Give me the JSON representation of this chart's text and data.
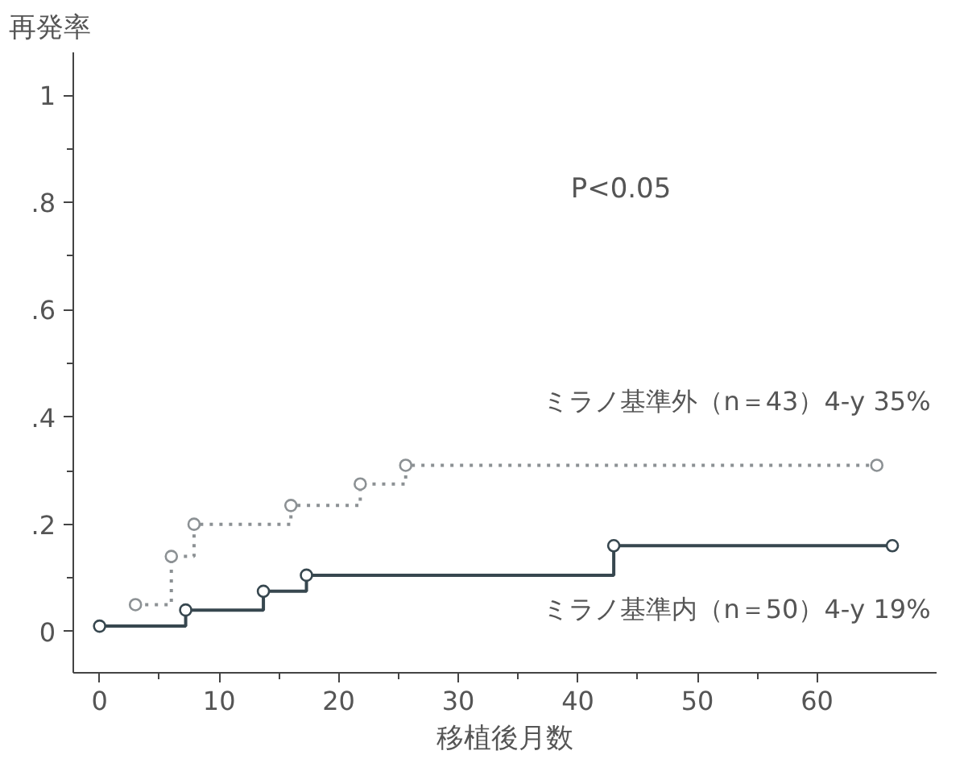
{
  "chart_data": {
    "type": "step",
    "ylabel": "再発率",
    "xlabel": "移植後月数",
    "xlim": [
      -2.2,
      70
    ],
    "xticks": [
      0,
      10,
      20,
      30,
      40,
      50,
      60
    ],
    "ylim": [
      -0.077,
      1.08
    ],
    "yticks": [
      {
        "value": 0,
        "label": "0"
      },
      {
        "value": 0.2,
        "label": ".2"
      },
      {
        "value": 0.4,
        "label": ".4"
      },
      {
        "value": 0.6,
        "label": ".6"
      },
      {
        "value": 0.8,
        "label": ".8"
      },
      {
        "value": 1,
        "label": "1"
      }
    ],
    "grid": false,
    "marker": "circle",
    "annotations": [
      "P<0.05"
    ],
    "series": [
      {
        "name": "ミラノ基準外（n＝43）4-y 35%",
        "color": "#8c9194",
        "line_style": "dotted",
        "x": [
          3,
          6,
          7.9,
          16,
          21.8,
          25.6,
          65
        ],
        "values": [
          0.05,
          0.14,
          0.2,
          0.235,
          0.275,
          0.31,
          0.31
        ]
      },
      {
        "name": "ミラノ基準内（n＝50）4-y 19%",
        "color": "#37474f",
        "line_style": "solid",
        "x": [
          0,
          7.2,
          13.7,
          17.3,
          43,
          66.3
        ],
        "values": [
          0.01,
          0.04,
          0.075,
          0.105,
          0.16,
          0.16
        ]
      }
    ]
  }
}
